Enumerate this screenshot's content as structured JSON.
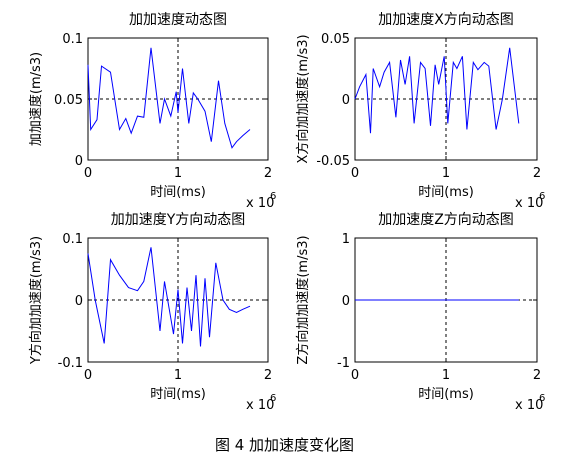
{
  "caption": "图 4  加加速度变化图",
  "chart_data": [
    {
      "type": "line",
      "title": "加加速度动态图",
      "xlabel": "时间(ms)",
      "ylabel": "加加速度(m/s3)",
      "x_multiplier": "x 10",
      "x_multiplier_exp": "6",
      "xlim": [
        0,
        2
      ],
      "ylim": [
        0,
        0.1
      ],
      "xticks": [
        "0",
        "1",
        "2"
      ],
      "yticks": [
        "0",
        "0.05",
        "0.1"
      ],
      "line_color": "#0000ff",
      "crosshair": "dashed",
      "series": [
        {
          "x": [
            0,
            0.03,
            0.1,
            0.15,
            0.25,
            0.35,
            0.42,
            0.48,
            0.55,
            0.62,
            0.7,
            0.8,
            0.85,
            0.92,
            0.98,
            1.0,
            1.05,
            1.12,
            1.17,
            1.22,
            1.3,
            1.37,
            1.45,
            1.52,
            1.6,
            1.65,
            1.72,
            1.8
          ],
          "y": [
            0.078,
            0.025,
            0.033,
            0.077,
            0.072,
            0.025,
            0.034,
            0.022,
            0.036,
            0.035,
            0.092,
            0.03,
            0.05,
            0.036,
            0.056,
            0.039,
            0.075,
            0.03,
            0.055,
            0.05,
            0.04,
            0.015,
            0.065,
            0.03,
            0.01,
            0.015,
            0.02,
            0.025
          ]
        }
      ]
    },
    {
      "type": "line",
      "title": "加加速度X方向动态图",
      "xlabel": "时间(ms)",
      "ylabel": "X方向加加速度(m/s3)",
      "x_multiplier": "x 10",
      "x_multiplier_exp": "6",
      "xlim": [
        0,
        2
      ],
      "ylim": [
        -0.05,
        0.05
      ],
      "xticks": [
        "0",
        "1",
        "2"
      ],
      "yticks": [
        "-0.05",
        "0",
        "0.05"
      ],
      "line_color": "#0000ff",
      "crosshair": "dashed",
      "series": [
        {
          "x": [
            0,
            0.05,
            0.12,
            0.17,
            0.2,
            0.27,
            0.32,
            0.38,
            0.45,
            0.5,
            0.55,
            0.6,
            0.65,
            0.72,
            0.77,
            0.83,
            0.88,
            0.92,
            0.98,
            1.02,
            1.08,
            1.12,
            1.18,
            1.23,
            1.3,
            1.35,
            1.42,
            1.47,
            1.55,
            1.62,
            1.7,
            1.8
          ],
          "y": [
            0,
            0.01,
            0.02,
            -0.028,
            0.025,
            0.01,
            0.022,
            0.03,
            -0.015,
            0.032,
            0.012,
            0.035,
            -0.02,
            0.03,
            0.025,
            -0.022,
            0.028,
            0.012,
            0.035,
            -0.02,
            0.03,
            0.025,
            0.035,
            -0.025,
            0.03,
            0.024,
            0.03,
            0.027,
            -0.025,
            0.0,
            0.042,
            -0.02
          ]
        }
      ]
    },
    {
      "type": "line",
      "title": "加加速度Y方向动态图",
      "xlabel": "时间(ms)",
      "ylabel": "Y方向加加速度(m/s3)",
      "x_multiplier": "x 10",
      "x_multiplier_exp": "6",
      "xlim": [
        0,
        2
      ],
      "ylim": [
        -0.1,
        0.1
      ],
      "xticks": [
        "0",
        "1",
        "2"
      ],
      "yticks": [
        "-0.1",
        "0",
        "0.1"
      ],
      "line_color": "#0000ff",
      "crosshair": "dashed",
      "series": [
        {
          "x": [
            0,
            0.08,
            0.18,
            0.25,
            0.35,
            0.45,
            0.55,
            0.62,
            0.7,
            0.8,
            0.85,
            0.95,
            1.0,
            1.05,
            1.1,
            1.15,
            1.2,
            1.25,
            1.3,
            1.35,
            1.42,
            1.5,
            1.57,
            1.65,
            1.72,
            1.8
          ],
          "y": [
            0.075,
            0.0,
            -0.07,
            0.065,
            0.04,
            0.02,
            0.015,
            0.03,
            0.085,
            -0.05,
            0.03,
            -0.055,
            0.017,
            -0.07,
            0.02,
            -0.05,
            0.04,
            -0.075,
            0.035,
            -0.06,
            0.06,
            0.0,
            -0.015,
            -0.02,
            -0.015,
            -0.01
          ]
        }
      ]
    },
    {
      "type": "line",
      "title": "加加速度Z方向动态图",
      "xlabel": "时间(ms)",
      "ylabel": "Z方向加加速度(m/s3)",
      "x_multiplier": "x 10",
      "x_multiplier_exp": "6",
      "xlim": [
        0,
        2
      ],
      "ylim": [
        -1,
        1
      ],
      "xticks": [
        "0",
        "1",
        "2"
      ],
      "yticks": [
        "-1",
        "0",
        "1"
      ],
      "line_color": "#0000ff",
      "crosshair": "dashed",
      "series": [
        {
          "x": [
            0,
            1.8
          ],
          "y": [
            0,
            0
          ]
        }
      ]
    }
  ]
}
